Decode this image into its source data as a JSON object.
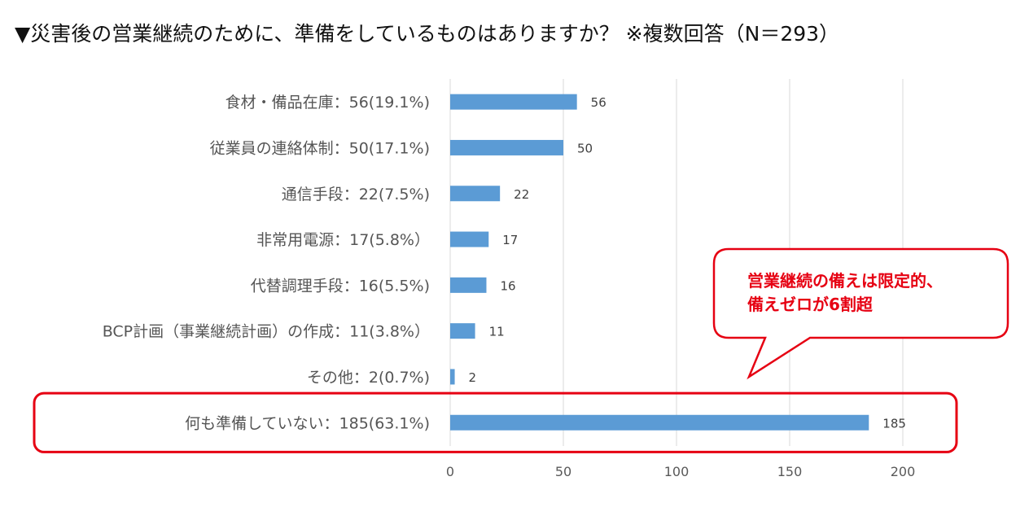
{
  "title": "▼災害後の営業継続のために、準備をしているものはありますか？ ※複数回答（N＝293）",
  "chart_data": {
    "type": "bar",
    "orientation": "horizontal",
    "categories": [
      "食材・備品在庫：56(19.1%)",
      "従業員の連絡体制：50(17.1%)",
      "通信手段：22(7.5%)",
      "非常用電源：17(5.8%）",
      "代替調理手段：16(5.5%)",
      "BCP計画（事業継続計画）の作成：11(3.8%）",
      "その他：2(0.7%)",
      "何も準備していない：185(63.1%)"
    ],
    "values": [
      56,
      50,
      22,
      17,
      16,
      11,
      2,
      185
    ],
    "xlim": [
      0,
      200
    ],
    "xticks": [
      0,
      50,
      100,
      150,
      200
    ],
    "grid": true,
    "bar_color": "#5b9bd5",
    "highlight_index": 7,
    "highlight_color": "#e60012"
  },
  "callout": {
    "lines": [
      "営業継続の備えは限定的、",
      "備えゼロが6割超"
    ],
    "color": "#e60012"
  }
}
